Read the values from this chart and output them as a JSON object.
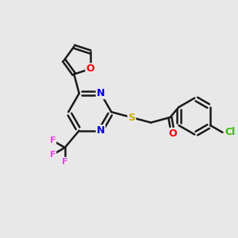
{
  "background_color": "#e8e8e8",
  "bond_color": "#1a1a1a",
  "bond_width": 1.8,
  "atom_colors": {
    "O": "#ff0000",
    "N": "#0000dd",
    "S": "#ccaa00",
    "Cl": "#33bb00",
    "F": "#ee44ee",
    "C": "#1a1a1a"
  },
  "font_size": 9,
  "figsize": [
    3.0,
    3.0
  ],
  "dpi": 100
}
